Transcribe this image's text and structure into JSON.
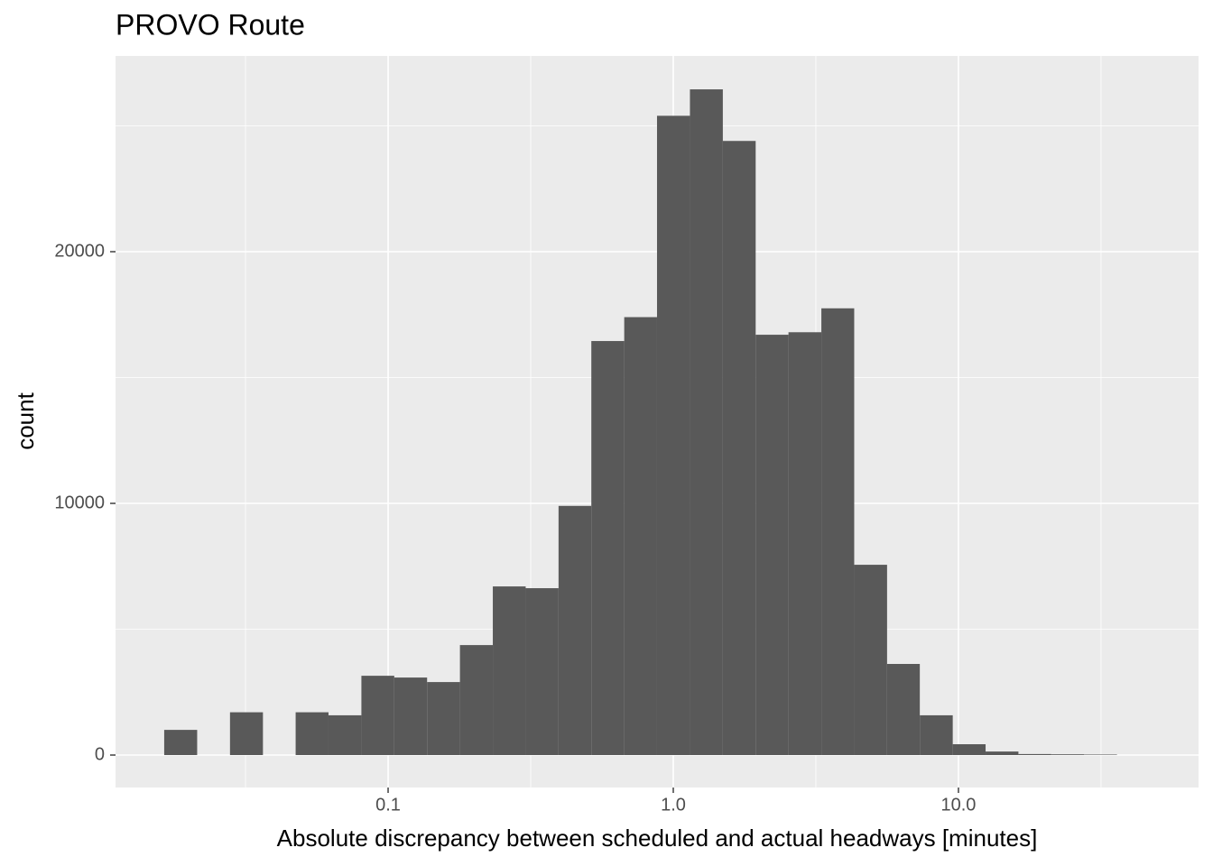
{
  "chart_data": {
    "type": "histogram",
    "title": "PROVO Route",
    "x_label": "Absolute discrepancy between scheduled and actual headways [minutes]",
    "y_label": "count",
    "log_x": true,
    "grid": true,
    "color": "#595959",
    "bins": [
      0.0164,
      0.0214,
      0.0279,
      0.0364,
      0.0474,
      0.0618,
      0.0806,
      0.1051,
      0.137,
      0.1786,
      0.2329,
      0.3037,
      0.396,
      0.516,
      0.673,
      0.877,
      1.144,
      1.492,
      1.945,
      2.535,
      3.306,
      4.31,
      5.62,
      7.32,
      9.55,
      12.45,
      16.23,
      21.16,
      27.6,
      35.97
    ],
    "values": [
      1000,
      0,
      1700,
      0,
      1700,
      1580,
      3150,
      3080,
      2900,
      4370,
      6700,
      6630,
      9900,
      16450,
      17400,
      25400,
      26450,
      24400,
      16700,
      16800,
      17750,
      7560,
      3620,
      1580,
      430,
      140,
      40,
      30,
      20
    ],
    "xlim": [
      0.01107,
      69.5
    ],
    "ylim": [
      -1290,
      27778
    ],
    "xticks": [
      {
        "value": 0.1,
        "label": "0.1"
      },
      {
        "value": 1,
        "label": "1.0"
      },
      {
        "value": 10,
        "label": "10.0"
      }
    ],
    "yticks": [
      0,
      10000,
      20000
    ]
  }
}
